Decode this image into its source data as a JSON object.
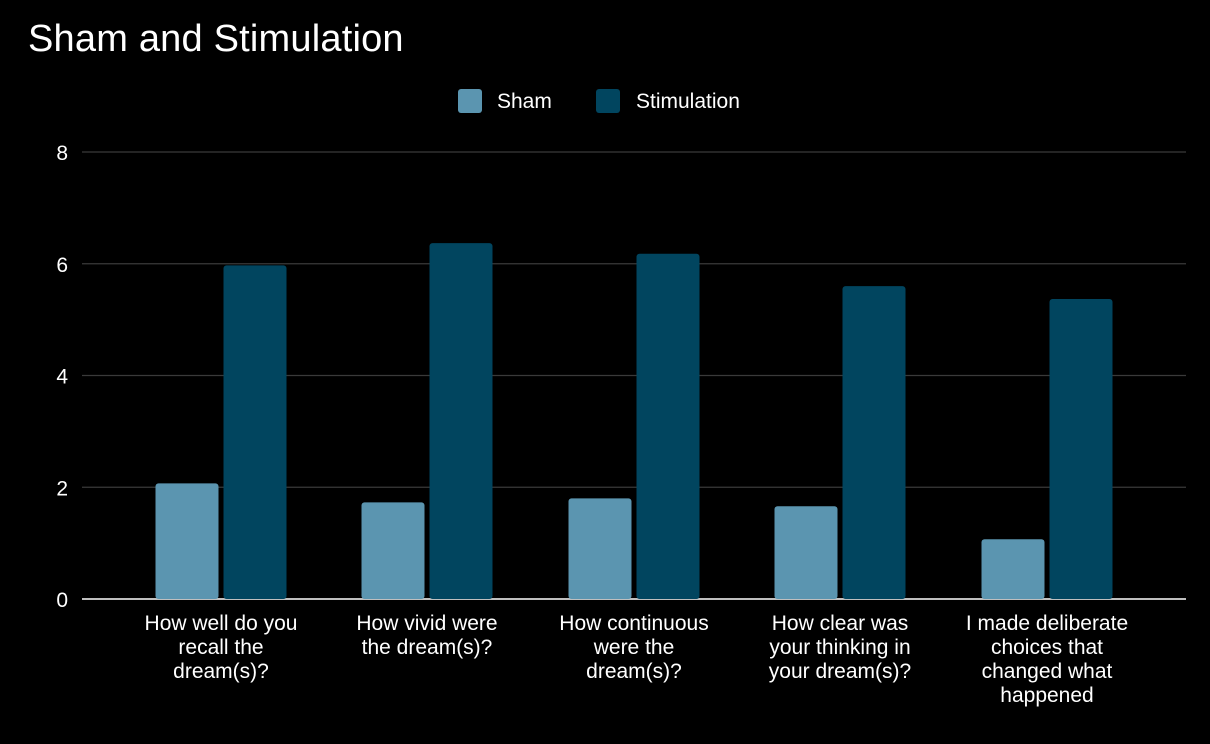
{
  "chart_data": {
    "type": "bar",
    "title": "Sham and Stimulation",
    "xlabel": "",
    "ylabel": "",
    "ylim": [
      0,
      8
    ],
    "yticks": [
      0,
      2,
      4,
      6,
      8
    ],
    "grid": true,
    "legend_position": "top",
    "categories": [
      [
        "How well do you",
        "recall the",
        "dream(s)?"
      ],
      [
        "How vivid were",
        "the dream(s)?"
      ],
      [
        "How continuous",
        "were the",
        "dream(s)?"
      ],
      [
        "How clear was",
        "your thinking in",
        "your dream(s)?"
      ],
      [
        "I made deliberate",
        "choices that",
        "changed what",
        "happened"
      ]
    ],
    "series": [
      {
        "name": "Sham",
        "color": "#5b95b0",
        "values": [
          2.07,
          1.73,
          1.8,
          1.66,
          1.07
        ]
      },
      {
        "name": "Stimulation",
        "color": "#01455f",
        "values": [
          5.97,
          6.37,
          6.18,
          5.6,
          5.37
        ]
      }
    ]
  }
}
